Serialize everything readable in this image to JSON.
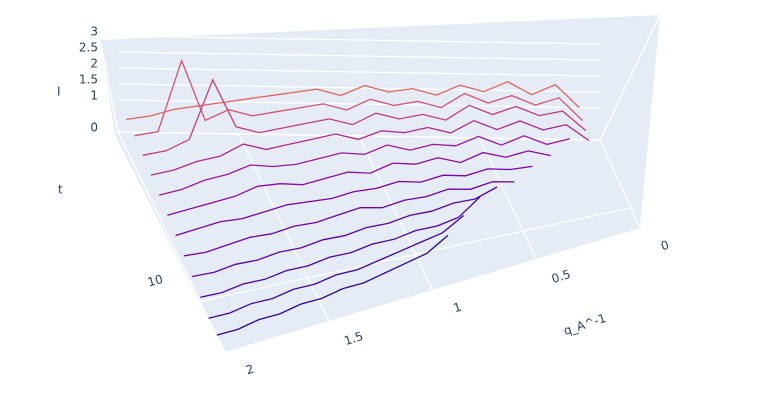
{
  "chart_data": {
    "type": "line3d",
    "x_title": "q_A^-1",
    "y_title": "t",
    "z_title": "I",
    "x": [
      0.1,
      0.2,
      0.3,
      0.4,
      0.5,
      0.6,
      0.7,
      0.8,
      0.9,
      1.0,
      1.1,
      1.2,
      1.3,
      1.4,
      1.5,
      1.6,
      1.7,
      1.8,
      1.9,
      2.0
    ],
    "xlim": [
      0,
      2
    ],
    "xticks": [
      0,
      0.5,
      1,
      1.5,
      2
    ],
    "ylim": [
      0,
      13
    ],
    "yticks": [
      10
    ],
    "zlim": [
      0,
      3
    ],
    "zticks": [
      0,
      1,
      1.5,
      2,
      2.5,
      3
    ],
    "grid": true,
    "series": [
      {
        "t": 1,
        "color": "#e16462",
        "values": [
          1.2,
          1.9,
          1.6,
          2.0,
          1.7,
          1.9,
          1.6,
          1.8,
          1.7,
          1.9,
          1.6,
          1.8,
          1.7,
          1.6,
          1.5,
          1.4,
          1.3,
          1.2,
          1.0,
          0.9
        ]
      },
      {
        "t": 2,
        "color": "#d5546e",
        "values": [
          1.0,
          1.7,
          1.5,
          1.8,
          1.6,
          1.9,
          1.5,
          1.7,
          1.6,
          1.8,
          1.5,
          1.7,
          1.6,
          1.5,
          1.4,
          1.6,
          1.3,
          3.1,
          1.0,
          0.9
        ]
      },
      {
        "t": 3,
        "color": "#c33d80",
        "values": [
          0.9,
          1.5,
          1.4,
          1.7,
          1.5,
          1.8,
          1.4,
          1.6,
          1.5,
          1.7,
          1.4,
          1.6,
          1.5,
          1.4,
          1.3,
          1.5,
          2.9,
          1.2,
          0.9,
          0.8
        ]
      },
      {
        "t": 4,
        "color": "#b02991",
        "values": [
          0.8,
          1.3,
          1.2,
          1.5,
          1.3,
          1.6,
          1.3,
          1.5,
          1.4,
          1.5,
          1.3,
          1.5,
          1.4,
          1.3,
          1.2,
          1.4,
          1.1,
          1.0,
          0.8,
          0.7
        ]
      },
      {
        "t": 5,
        "color": "#9c179e",
        "values": [
          null,
          1.1,
          1.0,
          1.3,
          1.1,
          1.4,
          1.2,
          1.3,
          1.2,
          1.4,
          1.2,
          1.3,
          1.2,
          1.1,
          1.1,
          1.2,
          1.0,
          0.9,
          0.7,
          0.6
        ]
      },
      {
        "t": 6,
        "color": "#8b0aa5",
        "values": [
          null,
          null,
          0.9,
          1.1,
          1.0,
          1.2,
          1.0,
          1.2,
          1.1,
          1.2,
          1.0,
          1.1,
          1.0,
          0.9,
          1.0,
          1.0,
          0.8,
          0.7,
          0.6,
          0.5
        ]
      },
      {
        "t": 7,
        "color": "#7a02a8",
        "values": [
          null,
          null,
          null,
          0.9,
          0.9,
          1.0,
          0.9,
          1.0,
          0.9,
          1.0,
          0.9,
          0.9,
          0.8,
          0.8,
          0.8,
          0.7,
          0.6,
          0.6,
          0.5,
          0.4
        ]
      },
      {
        "t": 8,
        "color": "#6a00a8",
        "values": [
          null,
          null,
          null,
          null,
          0.8,
          0.9,
          0.8,
          0.9,
          0.8,
          0.8,
          0.7,
          0.8,
          0.7,
          0.6,
          0.6,
          0.5,
          0.5,
          0.4,
          0.3,
          0.3
        ]
      },
      {
        "t": 9,
        "color": "#5c01a6",
        "values": [
          null,
          null,
          null,
          null,
          null,
          1.0,
          0.8,
          0.8,
          0.7,
          0.7,
          0.6,
          0.6,
          0.5,
          0.5,
          0.4,
          0.4,
          0.3,
          0.3,
          0.2,
          0.2
        ]
      },
      {
        "t": 10,
        "color": "#4c02a1",
        "values": [
          null,
          null,
          null,
          null,
          null,
          null,
          1.1,
          0.7,
          0.6,
          0.6,
          0.5,
          0.5,
          0.4,
          0.4,
          0.3,
          0.3,
          0.2,
          0.2,
          0.1,
          0.1
        ]
      },
      {
        "t": 11,
        "color": "#3e049c",
        "values": [
          null,
          null,
          null,
          null,
          null,
          null,
          null,
          1.0,
          0.7,
          0.6,
          0.5,
          0.4,
          0.3,
          0.3,
          0.2,
          0.2,
          0.1,
          0.1,
          0.0,
          0.0
        ]
      },
      {
        "t": 12,
        "color": "#2c0594",
        "values": [
          null,
          null,
          null,
          null,
          null,
          null,
          null,
          null,
          0.9,
          0.6,
          0.5,
          0.4,
          0.3,
          0.3,
          0.2,
          0.2,
          0.1,
          0.1,
          0.0,
          0.0
        ]
      }
    ]
  }
}
